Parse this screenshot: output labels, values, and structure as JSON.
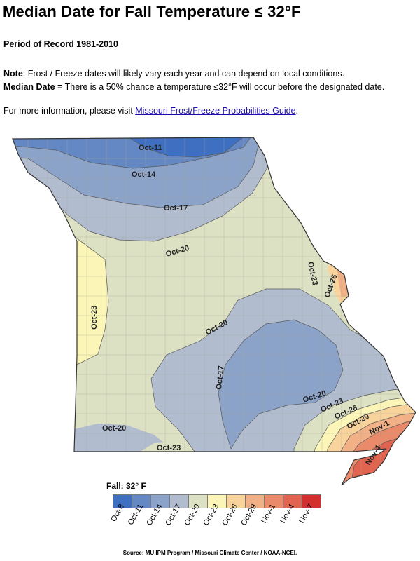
{
  "header": {
    "title": "Median Date for Fall Temperature ≤ 32°F",
    "period": "Period of Record 1981-2010",
    "note_label": "Note",
    "note_text": ": Frost / Freeze dates will likely vary each year and can depend  on local conditions.",
    "median_label": "Median Date =",
    "median_text": " There is a 50% chance a temperature ≤32°F will occur before the designated date.",
    "more_info_prefix": "For more information, please visit ",
    "more_info_link": "Missouri Frost/Freeze Probabilities Guide",
    "more_info_suffix": "."
  },
  "map": {
    "contour_labels": [
      "Oct-11",
      "Oct-14",
      "Oct-17",
      "Oct-20",
      "Oct-23",
      "Oct-26",
      "Oct-23",
      "Oct-20",
      "Oct-17",
      "Oct-20",
      "Oct-23",
      "Oct-26",
      "Oct-29",
      "Nov-1",
      "Nov-4",
      "Oct-20",
      "Oct-23"
    ]
  },
  "legend": {
    "title": "Fall: 32° F",
    "items": [
      {
        "label": "Oct-8",
        "color": "#3f6fc0"
      },
      {
        "label": "Oct-11",
        "color": "#6488c4"
      },
      {
        "label": "Oct-14",
        "color": "#8ba2c9"
      },
      {
        "label": "Oct-17",
        "color": "#b1bccf"
      },
      {
        "label": "Oct-20",
        "color": "#dde1c4"
      },
      {
        "label": "Oct-23",
        "color": "#fbf6b7"
      },
      {
        "label": "Oct-26",
        "color": "#f8d49c"
      },
      {
        "label": "Oct-29",
        "color": "#f1b085"
      },
      {
        "label": "Nov-1",
        "color": "#e98b6b"
      },
      {
        "label": "Nov-4",
        "color": "#e06450"
      },
      {
        "label": "Nov-7",
        "color": "#d32f2f"
      }
    ]
  },
  "source": "Source: MU IPM Program / Missouri Climate Center / NOAA-NCEI."
}
